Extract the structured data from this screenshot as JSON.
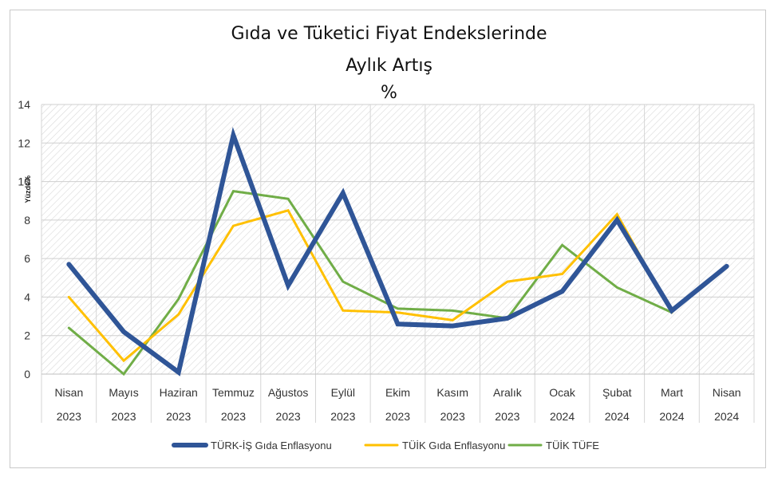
{
  "chart_data": {
    "type": "line",
    "title": "Gıda ve Tüketici Fiyat Endekslerinde",
    "subtitle": "Aylık Artış",
    "unit_title": "%",
    "ylabel": "Yüzde%",
    "ylim": [
      0,
      14
    ],
    "yticks": [
      "0",
      "2",
      "4",
      "6",
      "8",
      "10",
      "12",
      "14"
    ],
    "grid": true,
    "legend_position": "bottom",
    "categories": [
      [
        "Nisan",
        "2023"
      ],
      [
        "Mayıs",
        "2023"
      ],
      [
        "Haziran",
        "2023"
      ],
      [
        "Temmuz",
        "2023"
      ],
      [
        "Ağustos",
        "2023"
      ],
      [
        "Eylül",
        "2023"
      ],
      [
        "Ekim",
        "2023"
      ],
      [
        "Kasım",
        "2023"
      ],
      [
        "Aralık",
        "2023"
      ],
      [
        "Ocak",
        "2024"
      ],
      [
        "Şubat",
        "2024"
      ],
      [
        "Mart",
        "2024"
      ],
      [
        "Nisan",
        "2024"
      ]
    ],
    "series": [
      {
        "name": "TÜRK-İŞ Gıda Enflasyonu",
        "color": "#2f5597",
        "values": [
          5.7,
          2.2,
          0.1,
          12.4,
          4.6,
          9.4,
          2.6,
          2.5,
          2.9,
          4.3,
          8.0,
          3.3,
          5.6
        ]
      },
      {
        "name": "TÜİK Gıda Enflasyonu",
        "color": "#ffc000",
        "values": [
          4.0,
          0.7,
          3.1,
          7.7,
          8.5,
          3.3,
          3.2,
          2.8,
          4.8,
          5.2,
          8.3,
          3.2,
          null
        ]
      },
      {
        "name": "TÜİK TÜFE",
        "color": "#70ad47",
        "values": [
          2.4,
          0.0,
          3.9,
          9.5,
          9.1,
          4.8,
          3.4,
          3.3,
          2.9,
          6.7,
          4.5,
          3.2,
          null
        ]
      }
    ]
  }
}
